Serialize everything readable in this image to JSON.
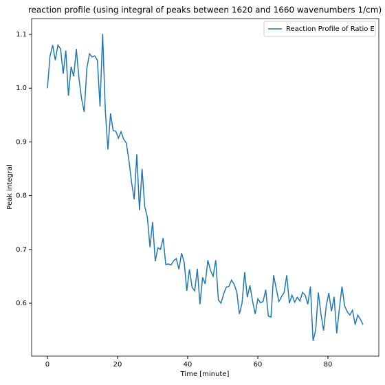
{
  "chart_data": {
    "type": "line",
    "title": "reaction profile (using integral of peaks between 1620 and 1660 wavenumbers 1/cm)",
    "x_label": "Time [minute]",
    "y_label": "Peak integral",
    "x": [
      0,
      0.75,
      1.5,
      2.25,
      3,
      3.75,
      4.5,
      5.25,
      6,
      6.75,
      7.5,
      8.25,
      9,
      9.75,
      10.5,
      11.25,
      12,
      12.75,
      13.5,
      14.25,
      15,
      15.75,
      16.5,
      17.25,
      18,
      18.75,
      19.5,
      20.25,
      21,
      21.75,
      22.5,
      23.25,
      24,
      24.75,
      25.5,
      26.25,
      27,
      27.75,
      28.5,
      29.25,
      30,
      30.75,
      31.5,
      32.25,
      33,
      33.75,
      34.5,
      35.25,
      36,
      36.75,
      37.5,
      38.25,
      39,
      39.75,
      40.5,
      41.25,
      42,
      42.75,
      43.5,
      44.25,
      45,
      45.75,
      46.5,
      47.25,
      48,
      48.75,
      49.5,
      50.25,
      51,
      51.75,
      52.5,
      53.25,
      54,
      54.75,
      55.5,
      56.25,
      57,
      57.75,
      58.5,
      59.25,
      60,
      60.75,
      61.5,
      62.25,
      63,
      63.75,
      64.5,
      65.25,
      66,
      66.75,
      67.5,
      68.25,
      69,
      69.75,
      70.5,
      71.25,
      72,
      72.75,
      73.5,
      74.25,
      75,
      75.75,
      76.5,
      77.25,
      78,
      78.75,
      79.5,
      80.25,
      81,
      81.75,
      82.5,
      83.25,
      84,
      84.75,
      85.5,
      86.25,
      87,
      87.75,
      88.5,
      89.25,
      90
    ],
    "series": [
      {
        "name": "Reaction Profile of Ratio E",
        "color": "#1f77b4",
        "values": [
          1.0,
          1.06,
          1.08,
          1.052,
          1.08,
          1.073,
          1.027,
          1.07,
          0.986,
          1.04,
          1.022,
          1.073,
          1.018,
          0.98,
          0.956,
          1.037,
          1.064,
          1.058,
          1.06,
          1.052,
          0.966,
          1.101,
          0.96,
          0.886,
          0.953,
          0.921,
          0.92,
          0.907,
          0.919,
          0.905,
          0.898,
          0.865,
          0.825,
          0.793,
          0.877,
          0.773,
          0.85,
          0.78,
          0.76,
          0.704,
          0.751,
          0.678,
          0.703,
          0.7,
          0.721,
          0.672,
          0.673,
          0.671,
          0.679,
          0.683,
          0.663,
          0.693,
          0.676,
          0.623,
          0.663,
          0.63,
          0.623,
          0.664,
          0.598,
          0.648,
          0.636,
          0.68,
          0.661,
          0.65,
          0.68,
          0.606,
          0.6,
          0.617,
          0.63,
          0.631,
          0.643,
          0.635,
          0.621,
          0.58,
          0.6,
          0.658,
          0.611,
          0.633,
          0.604,
          0.58,
          0.608,
          0.601,
          0.603,
          0.625,
          0.576,
          0.574,
          0.652,
          0.627,
          0.603,
          0.612,
          0.62,
          0.652,
          0.6,
          0.615,
          0.602,
          0.611,
          0.604,
          0.62,
          0.615,
          0.598,
          0.631,
          0.53,
          0.55,
          0.62,
          0.58,
          0.549,
          0.595,
          0.619,
          0.585,
          0.612,
          0.544,
          0.59,
          0.631,
          0.595,
          0.584,
          0.578,
          0.587,
          0.56,
          0.578,
          0.57,
          0.56
        ]
      }
    ],
    "xlim": [
      -4.5,
      94.5
    ],
    "ylim": [
      0.5015,
      1.1295
    ],
    "xticks": [
      0,
      20,
      40,
      60,
      80
    ],
    "yticks": [
      {
        "value": 0.6,
        "label": "0.6"
      },
      {
        "value": 0.7,
        "label": "0.7"
      },
      {
        "value": 0.8,
        "label": "0.8"
      },
      {
        "value": 0.9,
        "label": "0.9"
      },
      {
        "value": 1.0,
        "label": "1.0"
      },
      {
        "value": 1.1,
        "label": "1.1"
      }
    ],
    "grid": false,
    "legend": "upper right"
  }
}
